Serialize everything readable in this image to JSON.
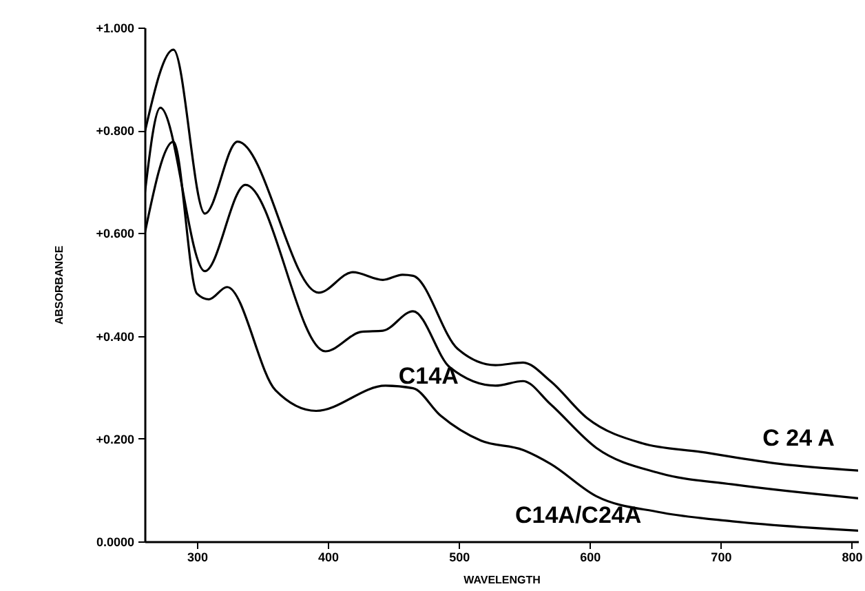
{
  "chart_data": {
    "type": "line",
    "xlabel": "WAVELENGTH",
    "ylabel": "ABSORBANCE",
    "xlim": [
      260,
      805
    ],
    "xticks": [
      300,
      400,
      500,
      600,
      700,
      800
    ],
    "ylim": [
      0,
      1
    ],
    "yticks": [
      {
        "value": 0,
        "label": "0.0000"
      },
      {
        "value": 0.2,
        "label": "+0.200"
      },
      {
        "value": 0.4,
        "label": "+0.400"
      },
      {
        "value": 0.6,
        "label": "+0.600"
      },
      {
        "value": 0.8,
        "label": "+0.800"
      },
      {
        "value": 1,
        "label": "+1.000"
      }
    ],
    "grid": false,
    "legend": false,
    "marker": "none",
    "line_style": "solid",
    "series": [
      {
        "name": "C 24 A",
        "color": "#000000",
        "x": [
          260,
          282,
          306,
          331,
          393,
          419,
          442,
          457,
          465,
          499,
          528,
          549,
          570,
          598,
          640,
          685,
          745,
          805
        ],
        "values": [
          0.795,
          0.957,
          0.638,
          0.778,
          0.484,
          0.524,
          0.509,
          0.519,
          0.517,
          0.375,
          0.343,
          0.348,
          0.312,
          0.24,
          0.191,
          0.174,
          0.151,
          0.138
        ]
      },
      {
        "name": "C14A",
        "color": "#000000",
        "x": [
          260,
          272,
          306,
          337,
          398,
          426,
          442,
          465,
          493,
          528,
          549,
          570,
          605,
          653,
          709,
          805
        ],
        "values": [
          0.674,
          0.844,
          0.526,
          0.694,
          0.37,
          0.408,
          0.41,
          0.448,
          0.339,
          0.303,
          0.312,
          0.267,
          0.182,
          0.133,
          0.111,
          0.084
        ]
      },
      {
        "name": "C14A/C24A",
        "color": "#000000",
        "x": [
          260,
          282,
          300,
          309,
          323,
          360,
          391,
          444,
          465,
          486,
          517,
          549,
          570,
          605,
          653,
          709,
          805
        ],
        "values": [
          0.598,
          0.778,
          0.482,
          0.471,
          0.495,
          0.294,
          0.254,
          0.303,
          0.298,
          0.245,
          0.196,
          0.178,
          0.151,
          0.088,
          0.057,
          0.039,
          0.021
        ]
      }
    ]
  }
}
